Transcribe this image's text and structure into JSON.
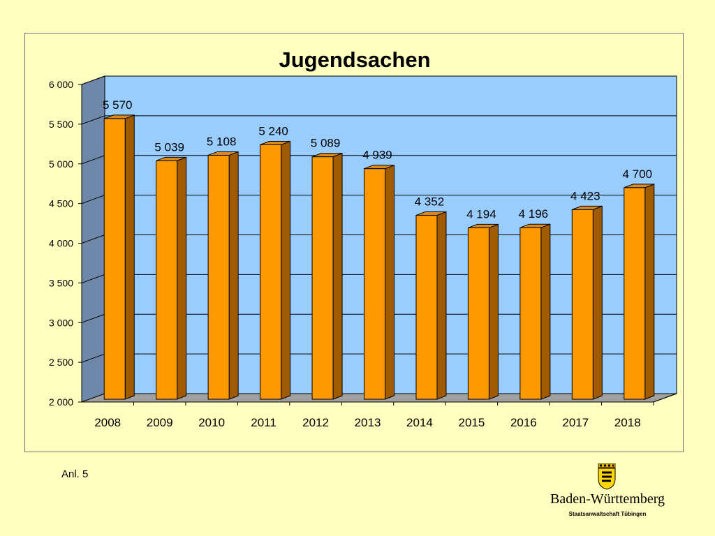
{
  "chart_data": {
    "type": "bar",
    "title": "Jugendsachen",
    "categories": [
      "2008",
      "2009",
      "2010",
      "2011",
      "2012",
      "2013",
      "2014",
      "2015",
      "2016",
      "2017",
      "2018"
    ],
    "values": [
      5570,
      5039,
      5108,
      5240,
      5089,
      4939,
      4352,
      4194,
      4196,
      4423,
      4700
    ],
    "value_labels": [
      "5 570",
      "5 039",
      "5 108",
      "5 240",
      "5 089",
      "4 939",
      "4 352",
      "4 194",
      "4 196",
      "4 423",
      "4 700"
    ],
    "ylim": [
      2000,
      6000
    ],
    "yticks": [
      2000,
      2500,
      3000,
      3500,
      4000,
      4500,
      5000,
      5500,
      6000
    ],
    "ytick_labels": [
      "2 000",
      "2 500",
      "3 000",
      "3 500",
      "4 000",
      "4 500",
      "5 000",
      "5 500",
      "6 000"
    ],
    "grid": true,
    "legend": "none",
    "colors": {
      "bar_front": "#ff9900",
      "bar_side": "#a05a00",
      "bar_top": "#d88a20",
      "plot_back": "#99ccff",
      "plot_left_wall": "#6f88aa",
      "floor": "#a0a0a0"
    }
  },
  "footer": {
    "annotation": "Anl. 5",
    "logo_name": "Baden-Württemberg",
    "logo_sub": "Staatsanwaltschaft Tübingen"
  }
}
